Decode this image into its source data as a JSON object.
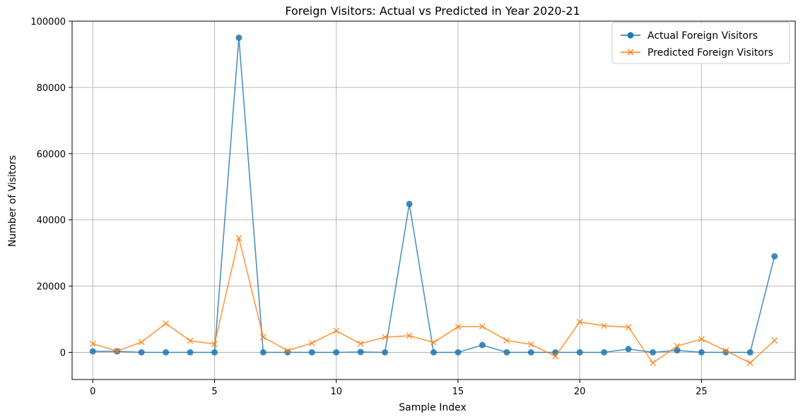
{
  "chart_data": {
    "type": "line",
    "title": "Foreign Visitors: Actual vs Predicted in Year 2020-21",
    "xlabel": "Sample Index",
    "ylabel": "Number of Visitors",
    "xlim": [
      -0.85,
      28.85
    ],
    "ylim": [
      -8200,
      100000
    ],
    "xticks": [
      0,
      5,
      10,
      15,
      20,
      25
    ],
    "yticks": [
      0,
      20000,
      40000,
      60000,
      80000,
      100000
    ],
    "xtick_labels": [
      "0",
      "5",
      "10",
      "15",
      "20",
      "25"
    ],
    "ytick_labels": [
      "0",
      "20000",
      "40000",
      "60000",
      "80000",
      "100000"
    ],
    "grid": true,
    "legend_position": "top-right",
    "x": [
      0,
      1,
      2,
      3,
      4,
      5,
      6,
      7,
      8,
      9,
      10,
      11,
      12,
      13,
      14,
      15,
      16,
      17,
      18,
      19,
      20,
      21,
      22,
      23,
      24,
      25,
      26,
      27,
      28
    ],
    "series": [
      {
        "name": "Actual Foreign Visitors",
        "color": "#1f77b4",
        "marker": "circle",
        "values": [
          300,
          300,
          0,
          0,
          0,
          0,
          95000,
          0,
          0,
          0,
          0,
          100,
          0,
          44800,
          0,
          0,
          2200,
          0,
          0,
          0,
          0,
          0,
          1000,
          0,
          600,
          0,
          0,
          0,
          29000
        ]
      },
      {
        "name": "Predicted Foreign Visitors",
        "color": "#ff7f0e",
        "marker": "x",
        "values": [
          2600,
          400,
          3100,
          8700,
          3500,
          2500,
          34500,
          4600,
          500,
          2800,
          6500,
          2600,
          4600,
          5000,
          3000,
          7700,
          7800,
          3600,
          2400,
          -1200,
          9200,
          8000,
          7600,
          -3200,
          1900,
          4000,
          500,
          -3200,
          3600
        ]
      }
    ]
  }
}
